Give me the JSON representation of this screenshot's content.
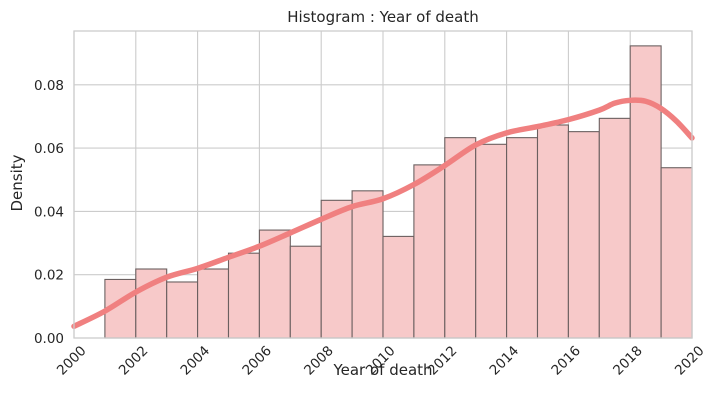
{
  "chart_data": {
    "type": "bar",
    "title": "Histogram : Year of death",
    "xlabel": "Year of death",
    "ylabel": "Density",
    "xlim": [
      2000,
      2020
    ],
    "ylim": [
      0,
      0.097
    ],
    "grid": true,
    "xticks": [
      2000,
      2002,
      2004,
      2006,
      2008,
      2010,
      2012,
      2014,
      2016,
      2018,
      2020
    ],
    "xtick_labels": [
      "2000",
      "2002",
      "2004",
      "2006",
      "2008",
      "2010",
      "2012",
      "2014",
      "2016",
      "2018",
      "2020"
    ],
    "yticks": [
      0.0,
      0.02,
      0.04,
      0.06,
      0.08
    ],
    "ytick_labels": [
      "0.00",
      "0.02",
      "0.04",
      "0.06",
      "0.08"
    ],
    "bins": [
      {
        "x0": 2001.0,
        "x1": 2002.0,
        "value": 0.0185
      },
      {
        "x0": 2002.0,
        "x1": 2003.0,
        "value": 0.0218
      },
      {
        "x0": 2003.0,
        "x1": 2004.0,
        "value": 0.0177
      },
      {
        "x0": 2004.0,
        "x1": 2005.0,
        "value": 0.0218
      },
      {
        "x0": 2005.0,
        "x1": 2006.0,
        "value": 0.0268
      },
      {
        "x0": 2006.0,
        "x1": 2007.0,
        "value": 0.0341
      },
      {
        "x0": 2007.0,
        "x1": 2008.0,
        "value": 0.029
      },
      {
        "x0": 2008.0,
        "x1": 2009.0,
        "value": 0.0435
      },
      {
        "x0": 2009.0,
        "x1": 2010.0,
        "value": 0.0465
      },
      {
        "x0": 2010.0,
        "x1": 2011.0,
        "value": 0.0321
      },
      {
        "x0": 2011.0,
        "x1": 2012.0,
        "value": 0.0547
      },
      {
        "x0": 2012.0,
        "x1": 2013.0,
        "value": 0.0633
      },
      {
        "x0": 2013.0,
        "x1": 2014.0,
        "value": 0.0612
      },
      {
        "x0": 2014.0,
        "x1": 2015.0,
        "value": 0.0633
      },
      {
        "x0": 2015.0,
        "x1": 2016.0,
        "value": 0.0673
      },
      {
        "x0": 2016.0,
        "x1": 2017.0,
        "value": 0.0652
      },
      {
        "x0": 2017.0,
        "x1": 2018.0,
        "value": 0.0694
      },
      {
        "x0": 2018.0,
        "x1": 2019.0,
        "value": 0.0923
      },
      {
        "x0": 2019.0,
        "x1": 2020.0,
        "value": 0.0538
      }
    ],
    "kde": {
      "x": [
        2000.0,
        2001.0,
        2002.0,
        2003.0,
        2004.0,
        2005.0,
        2006.0,
        2007.0,
        2008.0,
        2009.0,
        2010.0,
        2011.0,
        2012.0,
        2013.0,
        2014.0,
        2015.0,
        2016.0,
        2017.0,
        2017.5,
        2018.0,
        2018.5,
        2019.0,
        2019.5,
        2020.0
      ],
      "y": [
        0.0037,
        0.0085,
        0.0145,
        0.0192,
        0.022,
        0.0255,
        0.029,
        0.0332,
        0.0375,
        0.0415,
        0.044,
        0.0485,
        0.0545,
        0.061,
        0.0648,
        0.0668,
        0.069,
        0.072,
        0.0742,
        0.0751,
        0.0748,
        0.0725,
        0.0685,
        0.0632
      ]
    },
    "colors": {
      "bar_fill": "#f7c9c9",
      "bar_edge": "#6b6060",
      "kde_line": "#f08080",
      "grid": "#cccccc",
      "axes_edge": "#cccccc",
      "text": "#262626"
    }
  }
}
